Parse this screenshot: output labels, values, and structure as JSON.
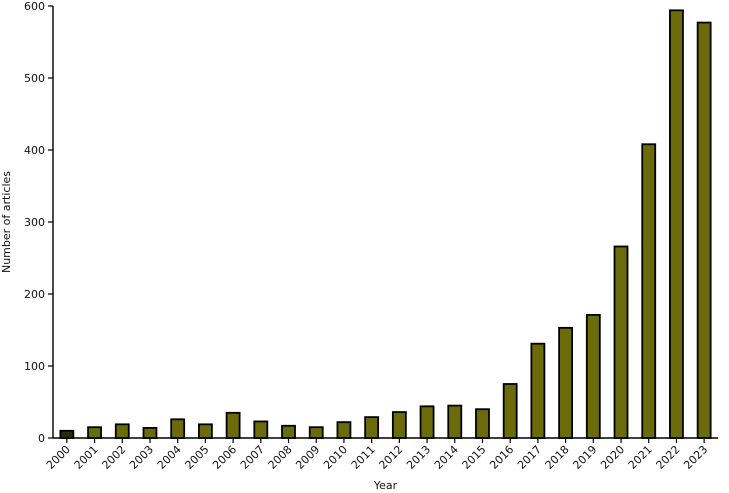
{
  "chart_data": {
    "type": "bar",
    "title": "",
    "xlabel": "Year",
    "ylabel": "Number of articles",
    "ylim": [
      0,
      600
    ],
    "yticks": [
      "0",
      "100",
      "200",
      "300",
      "400",
      "500",
      "600"
    ],
    "grid": false,
    "categories": [
      "2000",
      "2001",
      "2002",
      "2003",
      "2004",
      "2005",
      "2006",
      "2007",
      "2008",
      "2009",
      "2010",
      "2011",
      "2012",
      "2013",
      "2014",
      "2015",
      "2016",
      "2017",
      "2018",
      "2019",
      "2020",
      "2021",
      "2022",
      "2023"
    ],
    "values": [
      10,
      15,
      19,
      14,
      26,
      19,
      35,
      23,
      17,
      15,
      22,
      29,
      36,
      44,
      45,
      40,
      75,
      131,
      153,
      171,
      266,
      408,
      594,
      577
    ],
    "colors": {
      "bar_fill": "#6b6b0a",
      "bar_stroke": "#000000",
      "first_bar_fill": "#2b2b05",
      "axis": "#000000"
    }
  }
}
